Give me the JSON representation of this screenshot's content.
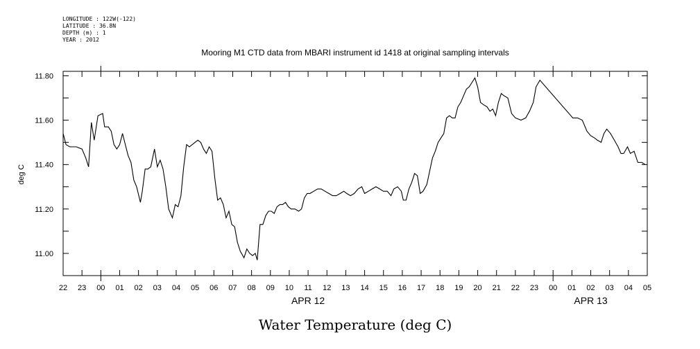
{
  "meta": {
    "longitude": "LONGITUDE : 122W(-122)",
    "latitude": "LATITUDE : 36.8N",
    "depth": "DEPTH (m) : 1",
    "year": "YEAR : 2012"
  },
  "chart_data": {
    "type": "line",
    "title": "Mooring M1 CTD data from MBARI instrument id 1418 at original sampling intervals",
    "xlabel": "Water Temperature (deg C)",
    "ylabel": "deg C",
    "ylim": [
      10.9,
      11.82
    ],
    "xlim_hours": [
      -2,
      29
    ],
    "y_ticks": [
      "11.00",
      "11.20",
      "11.40",
      "11.60",
      "11.80"
    ],
    "x_tick_labels": [
      "22",
      "23",
      "00",
      "01",
      "02",
      "03",
      "04",
      "05",
      "06",
      "07",
      "08",
      "09",
      "10",
      "11",
      "12",
      "13",
      "14",
      "15",
      "16",
      "17",
      "18",
      "19",
      "20",
      "21",
      "22",
      "23",
      "00",
      "01",
      "02",
      "03",
      "04",
      "05"
    ],
    "date_labels": [
      {
        "text": "APR 12",
        "hour": 11
      },
      {
        "text": "APR 13",
        "hour": 26
      }
    ],
    "legend": "none",
    "grid": false,
    "series": [
      {
        "values": [
          [
            -2.0,
            11.54
          ],
          [
            -1.85,
            11.49
          ],
          [
            -1.65,
            11.48
          ],
          [
            -1.3,
            11.48
          ],
          [
            -1.0,
            11.47
          ],
          [
            -0.8,
            11.43
          ],
          [
            -0.65,
            11.39
          ],
          [
            -0.5,
            11.59
          ],
          [
            -0.35,
            11.51
          ],
          [
            -0.15,
            11.62
          ],
          [
            0.1,
            11.63
          ],
          [
            0.2,
            11.57
          ],
          [
            0.4,
            11.57
          ],
          [
            0.55,
            11.55
          ],
          [
            0.7,
            11.49
          ],
          [
            0.85,
            11.47
          ],
          [
            1.0,
            11.49
          ],
          [
            1.15,
            11.54
          ],
          [
            1.3,
            11.49
          ],
          [
            1.45,
            11.44
          ],
          [
            1.6,
            11.41
          ],
          [
            1.75,
            11.33
          ],
          [
            1.9,
            11.3
          ],
          [
            2.1,
            11.23
          ],
          [
            2.2,
            11.28
          ],
          [
            2.35,
            11.38
          ],
          [
            2.5,
            11.38
          ],
          [
            2.65,
            11.39
          ],
          [
            2.85,
            11.47
          ],
          [
            3.0,
            11.39
          ],
          [
            3.15,
            11.42
          ],
          [
            3.3,
            11.38
          ],
          [
            3.45,
            11.3
          ],
          [
            3.6,
            11.2
          ],
          [
            3.8,
            11.16
          ],
          [
            3.95,
            11.22
          ],
          [
            4.1,
            11.21
          ],
          [
            4.25,
            11.26
          ],
          [
            4.4,
            11.39
          ],
          [
            4.55,
            11.49
          ],
          [
            4.7,
            11.48
          ],
          [
            4.85,
            11.49
          ],
          [
            5.0,
            11.5
          ],
          [
            5.15,
            11.51
          ],
          [
            5.3,
            11.5
          ],
          [
            5.45,
            11.47
          ],
          [
            5.6,
            11.45
          ],
          [
            5.75,
            11.48
          ],
          [
            5.9,
            11.46
          ],
          [
            6.05,
            11.34
          ],
          [
            6.2,
            11.24
          ],
          [
            6.35,
            11.25
          ],
          [
            6.5,
            11.22
          ],
          [
            6.65,
            11.16
          ],
          [
            6.8,
            11.19
          ],
          [
            6.95,
            11.13
          ],
          [
            7.1,
            11.12
          ],
          [
            7.25,
            11.05
          ],
          [
            7.4,
            11.01
          ],
          [
            7.6,
            10.98
          ],
          [
            7.75,
            11.02
          ],
          [
            7.9,
            11.0
          ],
          [
            8.05,
            10.99
          ],
          [
            8.2,
            11.0
          ],
          [
            8.3,
            10.97
          ],
          [
            8.45,
            11.13
          ],
          [
            8.6,
            11.13
          ],
          [
            8.75,
            11.17
          ],
          [
            8.9,
            11.19
          ],
          [
            9.05,
            11.19
          ],
          [
            9.2,
            11.18
          ],
          [
            9.35,
            11.21
          ],
          [
            9.5,
            11.22
          ],
          [
            9.65,
            11.22
          ],
          [
            9.8,
            11.23
          ],
          [
            9.95,
            11.21
          ],
          [
            10.1,
            11.2
          ],
          [
            10.3,
            11.2
          ],
          [
            10.5,
            11.19
          ],
          [
            10.65,
            11.2
          ],
          [
            10.8,
            11.25
          ],
          [
            10.95,
            11.27
          ],
          [
            11.1,
            11.27
          ],
          [
            11.3,
            11.28
          ],
          [
            11.5,
            11.29
          ],
          [
            11.7,
            11.29
          ],
          [
            11.9,
            11.28
          ],
          [
            12.1,
            11.27
          ],
          [
            12.3,
            11.26
          ],
          [
            12.5,
            11.26
          ],
          [
            12.7,
            11.27
          ],
          [
            12.9,
            11.28
          ],
          [
            13.05,
            11.27
          ],
          [
            13.25,
            11.26
          ],
          [
            13.45,
            11.27
          ],
          [
            13.65,
            11.29
          ],
          [
            13.85,
            11.3
          ],
          [
            14.0,
            11.27
          ],
          [
            14.2,
            11.28
          ],
          [
            14.4,
            11.29
          ],
          [
            14.6,
            11.3
          ],
          [
            14.8,
            11.29
          ],
          [
            15.0,
            11.28
          ],
          [
            15.2,
            11.28
          ],
          [
            15.4,
            11.26
          ],
          [
            15.55,
            11.29
          ],
          [
            15.75,
            11.3
          ],
          [
            15.95,
            11.28
          ],
          [
            16.05,
            11.24
          ],
          [
            16.2,
            11.24
          ],
          [
            16.35,
            11.29
          ],
          [
            16.5,
            11.32
          ],
          [
            16.65,
            11.36
          ],
          [
            16.8,
            11.35
          ],
          [
            16.95,
            11.27
          ],
          [
            17.1,
            11.28
          ],
          [
            17.3,
            11.31
          ],
          [
            17.45,
            11.37
          ],
          [
            17.6,
            11.43
          ],
          [
            17.75,
            11.46
          ],
          [
            17.9,
            11.5
          ],
          [
            18.05,
            11.52
          ],
          [
            18.2,
            11.54
          ],
          [
            18.35,
            11.61
          ],
          [
            18.5,
            11.62
          ],
          [
            18.65,
            11.61
          ],
          [
            18.8,
            11.61
          ],
          [
            18.95,
            11.66
          ],
          [
            19.1,
            11.68
          ],
          [
            19.25,
            11.71
          ],
          [
            19.4,
            11.74
          ],
          [
            19.55,
            11.75
          ],
          [
            19.7,
            11.77
          ],
          [
            19.85,
            11.79
          ],
          [
            20.0,
            11.75
          ],
          [
            20.15,
            11.68
          ],
          [
            20.3,
            11.67
          ],
          [
            20.5,
            11.66
          ],
          [
            20.65,
            11.64
          ],
          [
            20.8,
            11.65
          ],
          [
            20.95,
            11.62
          ],
          [
            21.1,
            11.68
          ],
          [
            21.25,
            11.72
          ],
          [
            21.4,
            11.71
          ],
          [
            21.6,
            11.7
          ],
          [
            21.8,
            11.63
          ],
          [
            22.0,
            11.61
          ],
          [
            22.3,
            11.6
          ],
          [
            22.55,
            11.61
          ],
          [
            22.75,
            11.64
          ],
          [
            22.95,
            11.68
          ],
          [
            23.1,
            11.75
          ],
          [
            23.3,
            11.78
          ],
          [
            25.05,
            11.61
          ],
          [
            25.3,
            11.61
          ],
          [
            25.55,
            11.6
          ],
          [
            25.8,
            11.55
          ],
          [
            26.0,
            11.53
          ],
          [
            26.2,
            11.52
          ],
          [
            26.35,
            11.51
          ],
          [
            26.55,
            11.5
          ],
          [
            26.7,
            11.54
          ],
          [
            26.85,
            11.56
          ],
          [
            27.05,
            11.54
          ],
          [
            27.25,
            11.51
          ],
          [
            27.45,
            11.48
          ],
          [
            27.6,
            11.45
          ],
          [
            27.75,
            11.45
          ],
          [
            27.95,
            11.48
          ],
          [
            28.1,
            11.45
          ],
          [
            28.3,
            11.46
          ],
          [
            28.5,
            11.41
          ],
          [
            28.7,
            11.41
          ],
          [
            28.9,
            11.4
          ]
        ]
      }
    ]
  }
}
